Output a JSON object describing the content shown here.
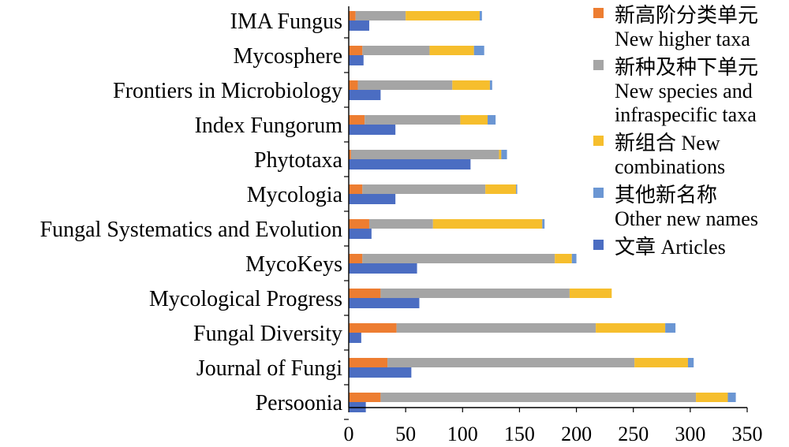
{
  "chart_data": {
    "type": "bar",
    "orientation": "horizontal",
    "stacked_series_grouped_with_separate_articles_bar": true,
    "categories": [
      "IMA Fungus",
      "Mycosphere",
      "Frontiers in Microbiology",
      "Index Fungorum",
      "Phytotaxa",
      "Mycologia",
      "Fungal Systematics and Evolution",
      "MycoKeys",
      "Mycological Progress",
      "Fungal Diversity",
      "Journal of Fungi",
      "Persoonia"
    ],
    "stacked_series": [
      {
        "name": "新高阶分类单元 New higher taxa",
        "color": "#ED7D31",
        "values": [
          6,
          12,
          8,
          14,
          2,
          12,
          18,
          12,
          28,
          42,
          34,
          28
        ]
      },
      {
        "name": "新种及种下单元 New species and infraspecific taxa",
        "color": "#A5A5A5",
        "values": [
          44,
          59,
          83,
          84,
          130,
          108,
          56,
          169,
          166,
          175,
          217,
          277
        ]
      },
      {
        "name": "新组合 New combinations",
        "color": "#F6BE2D",
        "values": [
          65,
          39,
          33,
          24,
          2,
          27,
          96,
          15,
          37,
          61,
          47,
          28
        ]
      },
      {
        "name": "其他新名称 Other new names",
        "color": "#6B96D3",
        "values": [
          2,
          9,
          2,
          7,
          5,
          1,
          2,
          4,
          0,
          9,
          5,
          7
        ]
      }
    ],
    "articles_series": {
      "name": "文章 Articles",
      "color": "#4B6DC2",
      "values": [
        18,
        13,
        28,
        41,
        107,
        41,
        20,
        60,
        62,
        11,
        55,
        15
      ]
    },
    "xlim": [
      0,
      350
    ],
    "xticks": [
      "0",
      "50",
      "100",
      "150",
      "200",
      "250",
      "300",
      "350"
    ],
    "legend": {
      "placement": "right",
      "entries": [
        {
          "lines": [
            "新高阶分类单元",
            "New higher taxa"
          ],
          "color": "#ED7D31"
        },
        {
          "lines": [
            "新种及种下单元",
            "New species and",
            "infraspecific taxa"
          ],
          "color": "#A5A5A5"
        },
        {
          "lines": [
            "新组合 New",
            "combinations"
          ],
          "color": "#F6BE2D"
        },
        {
          "lines": [
            "其他新名称",
            "Other new names"
          ],
          "color": "#6B96D3"
        },
        {
          "lines": [
            "文章 Articles"
          ],
          "color": "#4B6DC2"
        }
      ]
    },
    "grid": false,
    "title": "",
    "xlabel": "",
    "ylabel": ""
  }
}
